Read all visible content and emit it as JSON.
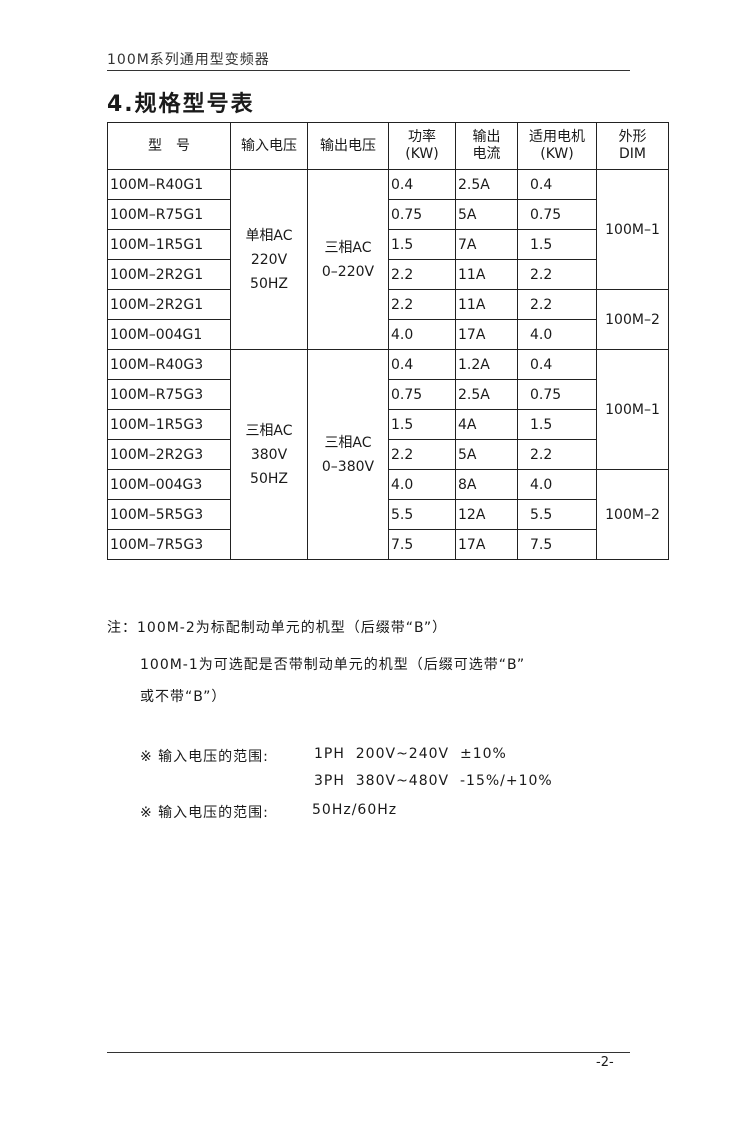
{
  "header": {
    "text": "100M系列通用型变频器"
  },
  "title": "4.规格型号表",
  "table": {
    "headers": [
      "型　号",
      "输入电压",
      "输出电压",
      "功率\n(KW)",
      "输出\n电流",
      "适用电机\n(KW)",
      "外形\nDIM"
    ],
    "groups": [
      {
        "input": [
          "单相AC",
          "220V",
          "50HZ"
        ],
        "output": [
          "三相AC",
          "0–220V"
        ],
        "rows": [
          [
            "100M–R40G1",
            "0.4",
            "2.5A",
            "0.4"
          ],
          [
            "100M–R75G1",
            "0.75",
            "5A",
            "0.75"
          ],
          [
            "100M–1R5G1",
            "1.5",
            "7A",
            "1.5"
          ],
          [
            "100M–2R2G1",
            "2.2",
            "11A",
            "2.2"
          ],
          [
            "100M–2R2G1",
            "2.2",
            "11A",
            "2.2"
          ],
          [
            "100M–004G1",
            "4.0",
            "17A",
            "4.0"
          ]
        ],
        "dims": [
          {
            "label": "100M–1",
            "span": 4
          },
          {
            "label": "100M–2",
            "span": 2
          }
        ]
      },
      {
        "input": [
          "三相AC",
          "380V",
          "50HZ"
        ],
        "output": [
          "三相AC",
          "0–380V"
        ],
        "rows": [
          [
            "100M–R40G3",
            "0.4",
            "1.2A",
            "0.4"
          ],
          [
            "100M–R75G3",
            "0.75",
            "2.5A",
            "0.75"
          ],
          [
            "100M–1R5G3",
            "1.5",
            "4A",
            "1.5"
          ],
          [
            "100M–2R2G3",
            "2.2",
            "5A",
            "2.2"
          ],
          [
            "100M–004G3",
            "4.0",
            "8A",
            "4.0"
          ],
          [
            "100M–5R5G3",
            "5.5",
            "12A",
            "5.5"
          ],
          [
            "100M–7R5G3",
            "7.5",
            "17A",
            "7.5"
          ]
        ],
        "dims": [
          {
            "label": "100M–1",
            "span": 4
          },
          {
            "label": "100M–2",
            "span": 3
          }
        ]
      }
    ]
  },
  "notes": {
    "line1": "注：100M-2为标配制动单元的机型（后缀带“B”）",
    "line2": "100M-1为可选配是否带制动单元的机型（后缀可选带“B”",
    "line3": "或不带“B”）",
    "range1_label": "※ 输入电压的范围:",
    "range1_a": "1PH  200V~240V  ±10%",
    "range1_b": "3PH  380V~480V  -15%/+10%",
    "range2_label": "※ 输入电压的范围:",
    "range2_value": "50Hz/60Hz"
  },
  "page_number": "-2-"
}
